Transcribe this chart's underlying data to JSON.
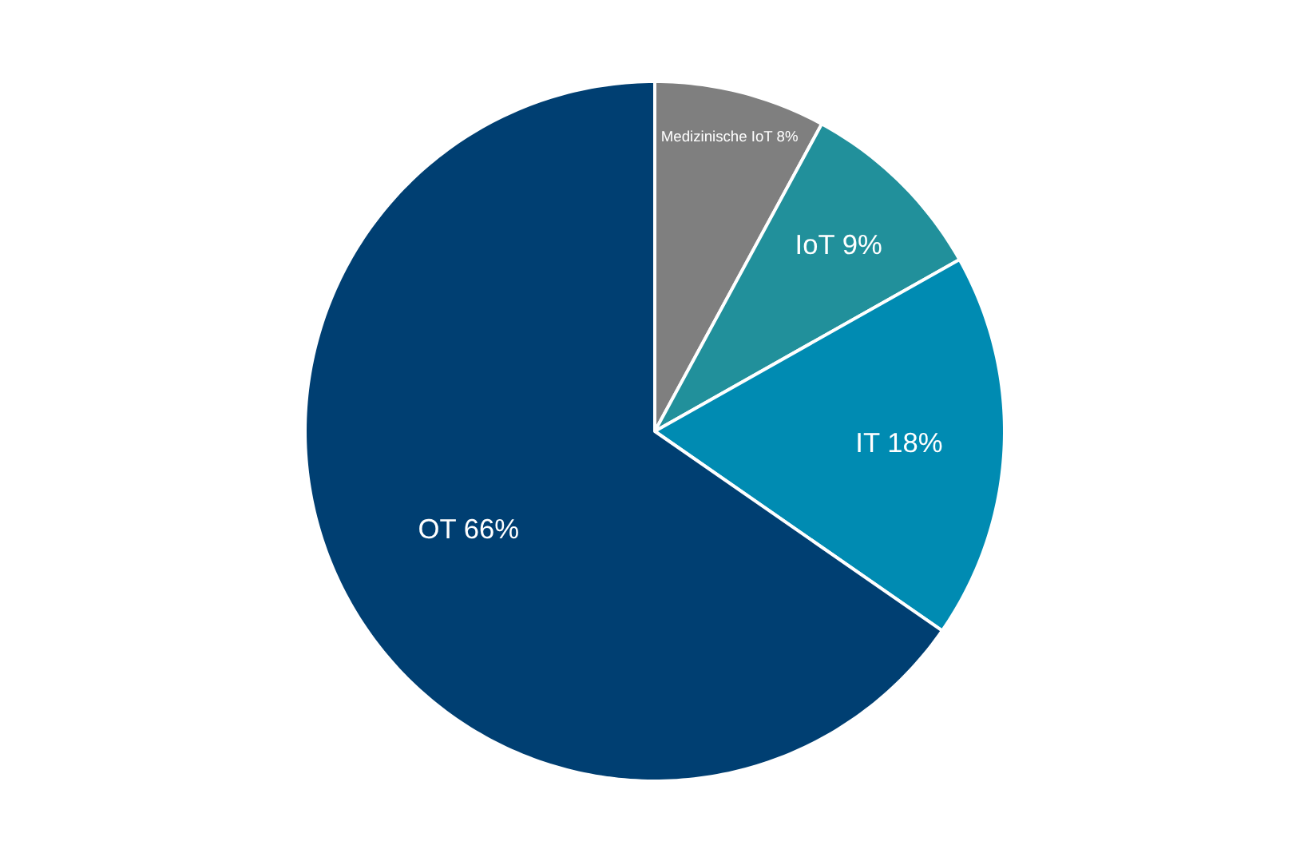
{
  "chart_data": {
    "type": "pie",
    "categories": [
      "Medizinische IoT",
      "IoT",
      "IT",
      "OT"
    ],
    "values": [
      8,
      9,
      18,
      66
    ],
    "value_labels": [
      "8%",
      "9%",
      "18%",
      "66%"
    ],
    "colors": [
      "#7f7f7f",
      "#21909b",
      "#008bb2",
      "#003f72"
    ]
  }
}
